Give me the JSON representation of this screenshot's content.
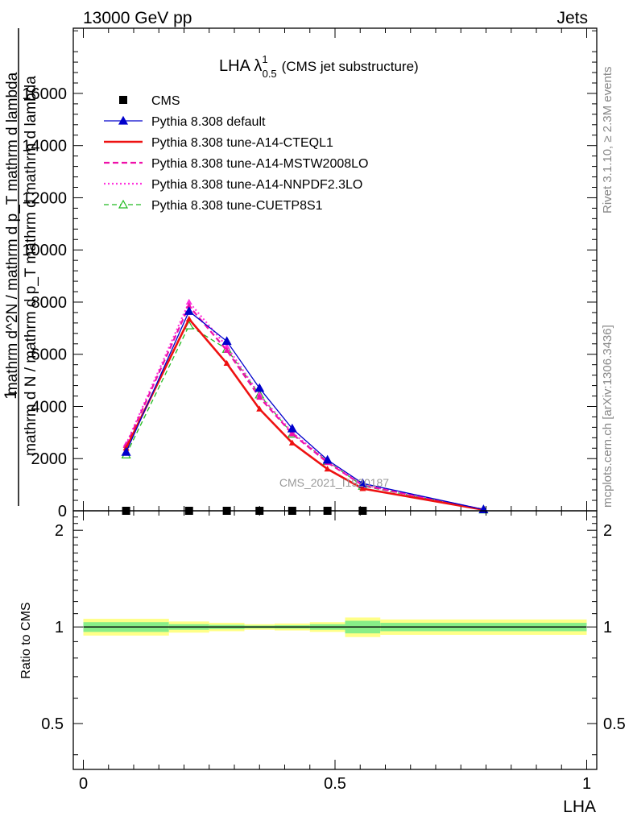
{
  "header": {
    "left": "13000 GeV pp",
    "right": "Jets",
    "title_main": "LHA λ",
    "title_sup": "1",
    "title_sub": "0.5",
    "title_tail": "(CMS jet substructure)"
  },
  "side_labels": {
    "rivet": "Rivet 3.1.10, ≥ 2.3M events",
    "mcplots": "mcplots.cern.ch [arXiv:1306.3436]"
  },
  "watermark": "CMS_2021_I1920187",
  "colors": {
    "cms": "#000000",
    "default": "#0000cc",
    "cteql1": "#ee1111",
    "mstw": "#ee11aa",
    "nnpdf": "#ff33dd",
    "cuetp8s1": "#22bb22",
    "band_outer": "#ffff88",
    "band_inner": "#88ee88"
  },
  "chart_data": [
    {
      "type": "line",
      "panel": "main",
      "ylabel_top": "1",
      "ylabel_num": "mathrm d N",
      "ylabel_den": "mathrm d N / mathrm d p_T  mathrm d mathrm d lambda",
      "ylabel_overlay": "mathrm d^2N / mathrm d p_T mathrm d lambda",
      "ylim": [
        0,
        18500
      ],
      "xlim": [
        -0.02,
        1.02
      ],
      "y_ticks": [
        0,
        2000,
        4000,
        6000,
        8000,
        10000,
        12000,
        14000,
        16000
      ],
      "y_tick_labels": [
        "0",
        "2000",
        "4000",
        "6000",
        "8000",
        "10000",
        "12000",
        "14000",
        "16000"
      ],
      "legend_position": "top-left",
      "series": [
        {
          "name": "CMS",
          "style": "square",
          "x": [
            0.085,
            0.21,
            0.285,
            0.35,
            0.415,
            0.485,
            0.555
          ],
          "y": [
            0,
            0,
            0,
            0,
            0,
            0,
            0
          ]
        },
        {
          "name": "Pythia 8.308 default",
          "style": "solid-triangle",
          "x": [
            0.085,
            0.21,
            0.285,
            0.35,
            0.415,
            0.485,
            0.555,
            0.795
          ],
          "y": [
            2250,
            7650,
            6500,
            4700,
            3150,
            1950,
            1050,
            50
          ]
        },
        {
          "name": "Pythia 8.308 tune-A14-CTEQL1",
          "style": "thick-solid",
          "x": [
            0.085,
            0.21,
            0.285,
            0.35,
            0.415,
            0.485,
            0.555,
            0.795
          ],
          "y": [
            2400,
            7350,
            5650,
            3900,
            2600,
            1600,
            850,
            40
          ]
        },
        {
          "name": "Pythia 8.308 tune-A14-MSTW2008LO",
          "style": "dashed",
          "x": [
            0.085,
            0.21,
            0.285,
            0.35,
            0.415,
            0.485,
            0.555,
            0.795
          ],
          "y": [
            2500,
            7850,
            6150,
            4350,
            2950,
            1850,
            980,
            45
          ]
        },
        {
          "name": "Pythia 8.308 tune-A14-NNPDF2.3LO",
          "style": "dotted",
          "x": [
            0.085,
            0.21,
            0.285,
            0.35,
            0.415,
            0.485,
            0.555,
            0.795
          ],
          "y": [
            2550,
            8000,
            6300,
            4450,
            3000,
            1900,
            1000,
            45
          ]
        },
        {
          "name": "Pythia 8.308 tune-CUETP8S1",
          "style": "dashed-open-triangle",
          "x": [
            0.085,
            0.21,
            0.285,
            0.35,
            0.415,
            0.485,
            0.555,
            0.795
          ],
          "y": [
            2150,
            7100,
            6200,
            4450,
            2950,
            1900,
            950,
            40
          ]
        }
      ]
    },
    {
      "type": "line",
      "panel": "ratio",
      "ylabel": "Ratio to CMS",
      "xlabel": "LHA",
      "ylim": [
        0.36,
        2.3
      ],
      "xlim": [
        -0.02,
        1.02
      ],
      "log_y": true,
      "y_tick_labels": [
        "0.5",
        "1",
        "2"
      ],
      "x_tick_labels": [
        "0",
        "0.5",
        "1"
      ],
      "reference": 1.0,
      "bands": [
        {
          "x0": 0.0,
          "x1": 0.17,
          "outer": 0.06,
          "inner": 0.035
        },
        {
          "x0": 0.17,
          "x1": 0.25,
          "outer": 0.04,
          "inner": 0.02
        },
        {
          "x0": 0.25,
          "x1": 0.32,
          "outer": 0.03,
          "inner": 0.015
        },
        {
          "x0": 0.32,
          "x1": 0.38,
          "outer": 0.02,
          "inner": 0.01
        },
        {
          "x0": 0.38,
          "x1": 0.45,
          "outer": 0.025,
          "inner": 0.012
        },
        {
          "x0": 0.45,
          "x1": 0.52,
          "outer": 0.035,
          "inner": 0.02
        },
        {
          "x0": 0.52,
          "x1": 0.59,
          "outer": 0.07,
          "inner": 0.045
        },
        {
          "x0": 0.59,
          "x1": 1.0,
          "outer": 0.055,
          "inner": 0.03
        }
      ]
    }
  ]
}
